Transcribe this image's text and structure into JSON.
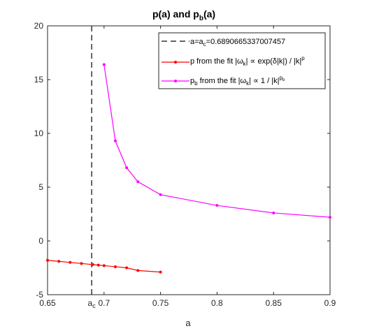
{
  "chart_data": {
    "type": "line",
    "title_main_1": "p(a) and p",
    "title_sub": "b",
    "title_main_2": "(a)",
    "xlabel": "a",
    "ylabel": "",
    "xlim": [
      0.65,
      0.9
    ],
    "ylim": [
      -5,
      20
    ],
    "x_ticks": [
      {
        "value": 0.65,
        "label": "0.65"
      },
      {
        "value": 0.7,
        "label": "0.7"
      },
      {
        "value": 0.75,
        "label": "0.75"
      },
      {
        "value": 0.8,
        "label": "0.8"
      },
      {
        "value": 0.85,
        "label": "0.85"
      },
      {
        "value": 0.9,
        "label": "0.9"
      }
    ],
    "y_ticks": [
      {
        "value": -5,
        "label": "-5"
      },
      {
        "value": 0,
        "label": "0"
      },
      {
        "value": 5,
        "label": "5"
      },
      {
        "value": 10,
        "label": "10"
      },
      {
        "value": 15,
        "label": "15"
      },
      {
        "value": 20,
        "label": "20"
      }
    ],
    "ac_value": 0.6890665337007457,
    "ac_tick": {
      "main": "a",
      "sub": "c"
    },
    "grid": false,
    "legend_position": "top-right",
    "legend": {
      "item1": {
        "pre": "a=a",
        "sub": "c",
        "post": "=0.6890665337007457"
      },
      "item2": {
        "pre": "p from the fit |ω",
        "sub": "k",
        "mid": "| ∝ exp(δ|k|) / |k|",
        "sup": "p"
      },
      "item3": {
        "pre": "p",
        "sub": "b",
        "mid": " from the fit |ω",
        "sub2": "k",
        "mid2": "| ∝ 1 / |k|",
        "sup": "p",
        "supsub": "b"
      }
    },
    "series": [
      {
        "color": "#ff0000",
        "marker": "dot",
        "x": [
          0.65,
          0.66,
          0.67,
          0.68,
          0.69,
          0.695,
          0.7,
          0.71,
          0.72,
          0.73,
          0.75
        ],
        "y": [
          -1.8,
          -1.9,
          -2.0,
          -2.1,
          -2.2,
          -2.25,
          -2.3,
          -2.4,
          -2.5,
          -2.75,
          -2.9
        ]
      },
      {
        "color": "#ff00ff",
        "marker": "dot",
        "x": [
          0.7,
          0.71,
          0.72,
          0.73,
          0.75,
          0.8,
          0.85,
          0.9
        ],
        "y": [
          16.4,
          9.3,
          6.8,
          5.5,
          4.3,
          3.3,
          2.6,
          2.2
        ]
      }
    ],
    "vline_color": "#333333"
  }
}
